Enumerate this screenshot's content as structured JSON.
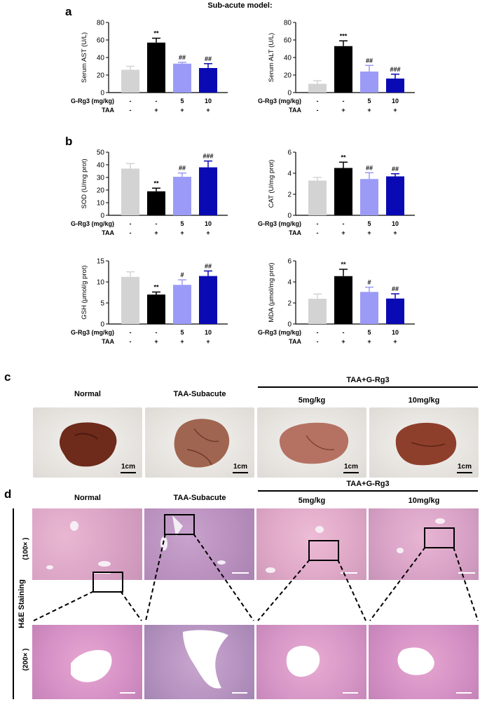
{
  "figure_title": "Sub-acute model:",
  "panel_letters": {
    "a": "a",
    "b": "b",
    "c": "c",
    "d": "d"
  },
  "row_labels": {
    "grg3": "G-Rg3 (mg/kg)",
    "taa": "TAA"
  },
  "grg3_values": [
    "-",
    "-",
    "5",
    "10"
  ],
  "taa_values": [
    "-",
    "+",
    "+",
    "+"
  ],
  "bar_colors": [
    "#d3d3d3",
    "#000000",
    "#9b9bf7",
    "#0a0ab4"
  ],
  "chart_data": [
    {
      "type": "bar",
      "ylabel": "Serum AST (U/L)",
      "ylim": [
        0,
        80
      ],
      "yticks": [
        0,
        20,
        40,
        60,
        80
      ],
      "values": [
        26,
        57,
        33,
        28
      ],
      "errors": [
        4,
        5,
        1.5,
        5
      ],
      "annotations": [
        "",
        "**",
        "##",
        "##"
      ]
    },
    {
      "type": "bar",
      "ylabel": "Serum ALT (U/L)",
      "ylim": [
        0,
        80
      ],
      "yticks": [
        0,
        20,
        40,
        60,
        80
      ],
      "values": [
        10,
        53,
        24,
        16
      ],
      "errors": [
        3.5,
        6,
        7,
        5
      ],
      "annotations": [
        "",
        "***",
        "##",
        "###"
      ]
    },
    {
      "type": "bar",
      "ylabel": "SOD (U/mg prot)",
      "ylim": [
        0,
        50
      ],
      "yticks": [
        0,
        10,
        20,
        30,
        40,
        50
      ],
      "values": [
        37,
        19,
        30.5,
        38
      ],
      "errors": [
        4,
        2.5,
        3,
        5
      ],
      "annotations": [
        "",
        "**",
        "##",
        "###"
      ]
    },
    {
      "type": "bar",
      "ylabel": "CAT (U/mg prot)",
      "ylim": [
        0,
        6
      ],
      "yticks": [
        0,
        2,
        4,
        6
      ],
      "values": [
        3.3,
        4.5,
        3.45,
        3.7
      ],
      "errors": [
        0.3,
        0.55,
        0.6,
        0.25
      ],
      "annotations": [
        "",
        "**",
        "##",
        "##"
      ]
    },
    {
      "type": "bar",
      "ylabel": "GSH (μmol/g prot)",
      "ylim": [
        0,
        15
      ],
      "yticks": [
        0,
        5,
        10,
        15
      ],
      "values": [
        11.2,
        7,
        9.3,
        11.4
      ],
      "errors": [
        1.2,
        0.6,
        1.2,
        1.2
      ],
      "annotations": [
        "",
        "**",
        "#",
        "##"
      ]
    },
    {
      "type": "bar",
      "ylabel": "MDA (μmol/mg prot)",
      "ylim": [
        0,
        6
      ],
      "yticks": [
        0,
        2,
        4,
        6
      ],
      "values": [
        2.4,
        4.55,
        3.05,
        2.42
      ],
      "errors": [
        0.45,
        0.65,
        0.45,
        0.45
      ],
      "annotations": [
        "",
        "**",
        "#",
        "##"
      ]
    }
  ],
  "panel_c": {
    "group_label": "TAA+G-Rg3",
    "headers": [
      "Normal",
      "TAA-Subacute",
      "5mg/kg",
      "10mg/kg"
    ],
    "scale_label": "1cm"
  },
  "panel_d": {
    "group_label": "TAA+G-Rg3",
    "headers": [
      "Normal",
      "TAA-Subacute",
      "5mg/kg",
      "10mg/kg"
    ],
    "stain_label": "H&E  Staining",
    "mag_low": "(100× )",
    "mag_high": "(200× )"
  }
}
